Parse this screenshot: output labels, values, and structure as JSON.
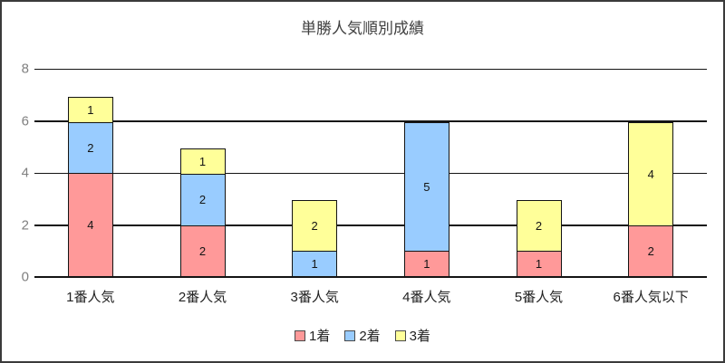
{
  "window": {
    "frame_border_color": "#3b3b3b",
    "background_color": "#ffffff"
  },
  "chart_data": {
    "type": "bar",
    "stacked": true,
    "title": "単勝人気順別成績",
    "categories": [
      "1番人気",
      "2番人気",
      "3番人気",
      "4番人気",
      "5番人気",
      "6番人気以下"
    ],
    "series": [
      {
        "name": "1着",
        "color": "#FF9999",
        "values": [
          4,
          2,
          0,
          1,
          1,
          2
        ]
      },
      {
        "name": "2着",
        "color": "#99CCFF",
        "values": [
          2,
          2,
          1,
          5,
          0,
          0
        ]
      },
      {
        "name": "3着",
        "color": "#FFFF99",
        "values": [
          1,
          1,
          2,
          0,
          2,
          4
        ]
      }
    ],
    "xlabel": "",
    "ylabel": "",
    "ylim": [
      0,
      8
    ],
    "yticks": [
      0,
      2,
      4,
      6,
      8
    ],
    "grid": true,
    "grid_color": "#141414",
    "bar_border_color": "#141414",
    "axis_tick_color": "#808080",
    "bar_value_labels_shown": true,
    "legend_position": "bottom"
  }
}
